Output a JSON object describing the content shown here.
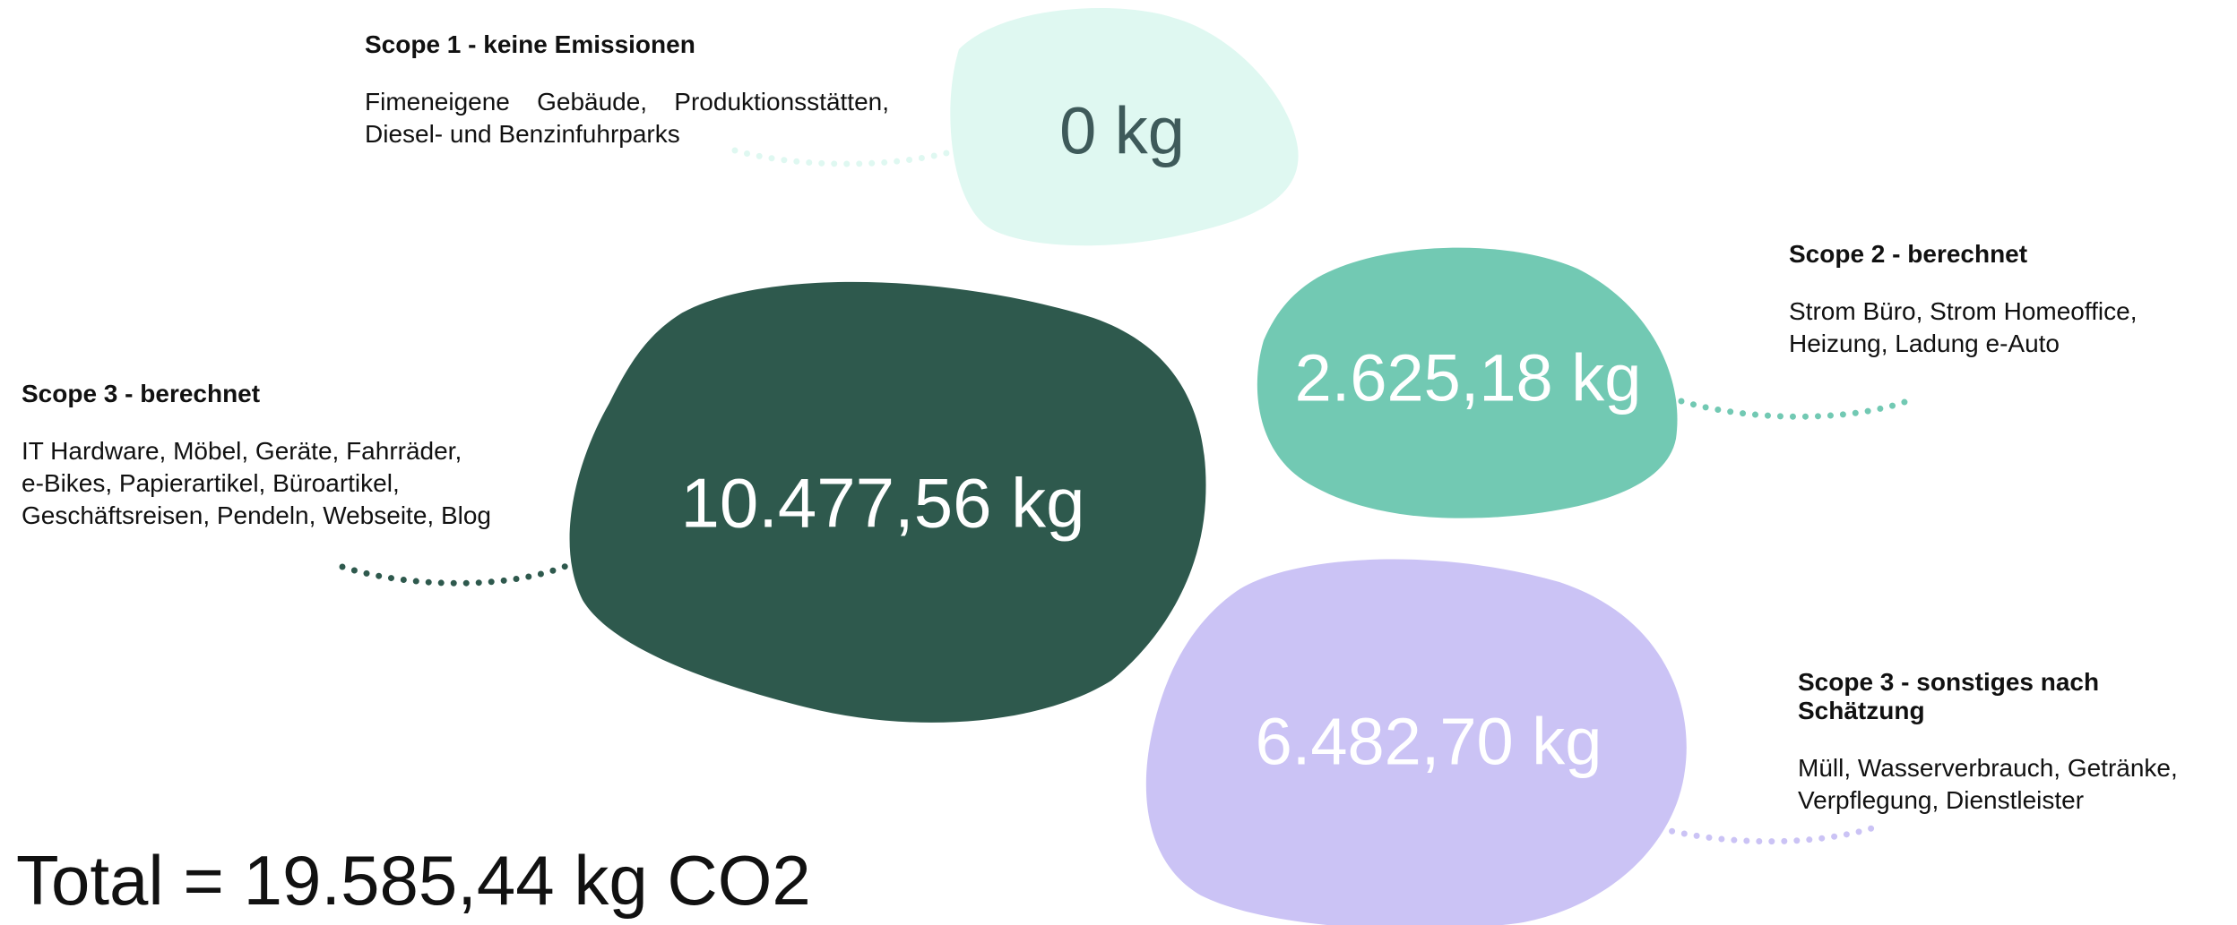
{
  "scopes": [
    {
      "title": "Scope 1 - keine Emissionen",
      "desc_lines": [
        "Fimeneigene Gebäude, Produktionsstätten,",
        "Diesel- und Benzinfuhrparks"
      ],
      "value": "0 kg",
      "color": "#dff8f1",
      "text_color": "#3e5a5a",
      "dot_color": "#dff8f1"
    },
    {
      "title": "Scope 2 - berechnet",
      "desc_lines": [
        "Strom Büro, Strom Homeoffice,",
        "Heizung, Ladung e-Auto"
      ],
      "value": "2.625,18 kg",
      "color": "#72c9b3",
      "text_color": "#ffffff",
      "dot_color": "#72c9b3"
    },
    {
      "title": "Scope 3 - berechnet",
      "desc_lines": [
        "IT Hardware, Möbel, Geräte, Fahrräder,",
        "e-Bikes, Papierartikel, Büroartikel,",
        "Geschäftsreisen, Pendeln, Webseite, Blog"
      ],
      "value": "10.477,56 kg",
      "color": "#2e594d",
      "text_color": "#ffffff",
      "dot_color": "#2e594d"
    },
    {
      "title": "Scope 3 - sonstiges nach Schätzung",
      "desc_lines": [
        "Müll, Wasserverbrauch, Getränke,",
        "Verpflegung, Dienstleister"
      ],
      "value": "6.482,70 kg",
      "color": "#cbc3f5",
      "text_color": "#ffffff",
      "dot_color": "#cbc3f5"
    }
  ],
  "total": "Total = 19.585,44 kg CO2"
}
